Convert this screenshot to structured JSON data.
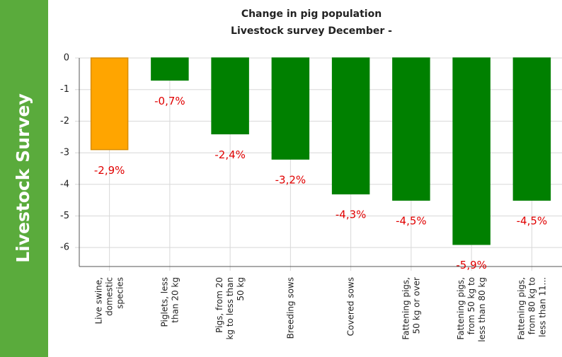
{
  "banner": "Livestock Survey",
  "chart_data": {
    "type": "bar",
    "title": "Change in pig population",
    "subtitle": "Livestock survey December -",
    "categories": [
      "Live swine, domestic species",
      "Piglets, less than 20 kg",
      "Pigs, from 20 kg to less than 50 kg",
      "Breeding sows",
      "Covered sows",
      "Fattening pigs, 50 kg or over",
      "Fattening pigs, from 50 kg to less than 80 kg",
      "Fattening pigs, from 80 kg to less than 11..."
    ],
    "values": [
      -2.9,
      -0.7,
      -2.4,
      -3.2,
      -4.3,
      -4.5,
      -5.9,
      -4.5
    ],
    "value_labels": [
      "-2,9%",
      "-0,7%",
      "-2,4%",
      "-3,2%",
      "-4,3%",
      "-4,5%",
      "-5,9%",
      "-4,5%"
    ],
    "colors": [
      "#ffa500",
      "#008000",
      "#008000",
      "#008000",
      "#008000",
      "#008000",
      "#008000",
      "#008000"
    ],
    "ylim": [
      -6.6,
      0
    ],
    "yticks": [
      0,
      -1,
      -2,
      -3,
      -4,
      -5,
      -6
    ],
    "grid": true
  }
}
